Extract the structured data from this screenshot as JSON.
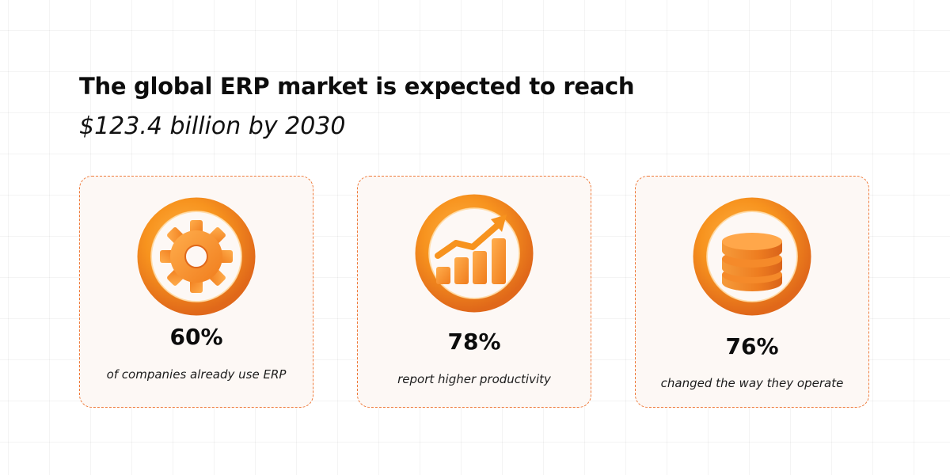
{
  "headline": "The global ERP market is expected to reach",
  "subheadline": "$123.4 billion by 2030",
  "colors": {
    "accent": "#f7931e",
    "accent_dark": "#e0681a",
    "card_border": "#ef7a3a",
    "card_background": "#fdf8f5"
  },
  "cards": [
    {
      "icon": "gear-icon",
      "value": "60%",
      "caption": "of companies already use ERP"
    },
    {
      "icon": "growth-chart-icon",
      "value": "78%",
      "caption": "report higher productivity"
    },
    {
      "icon": "coin-stack-icon",
      "value": "76%",
      "caption": "changed the way they operate"
    }
  ]
}
